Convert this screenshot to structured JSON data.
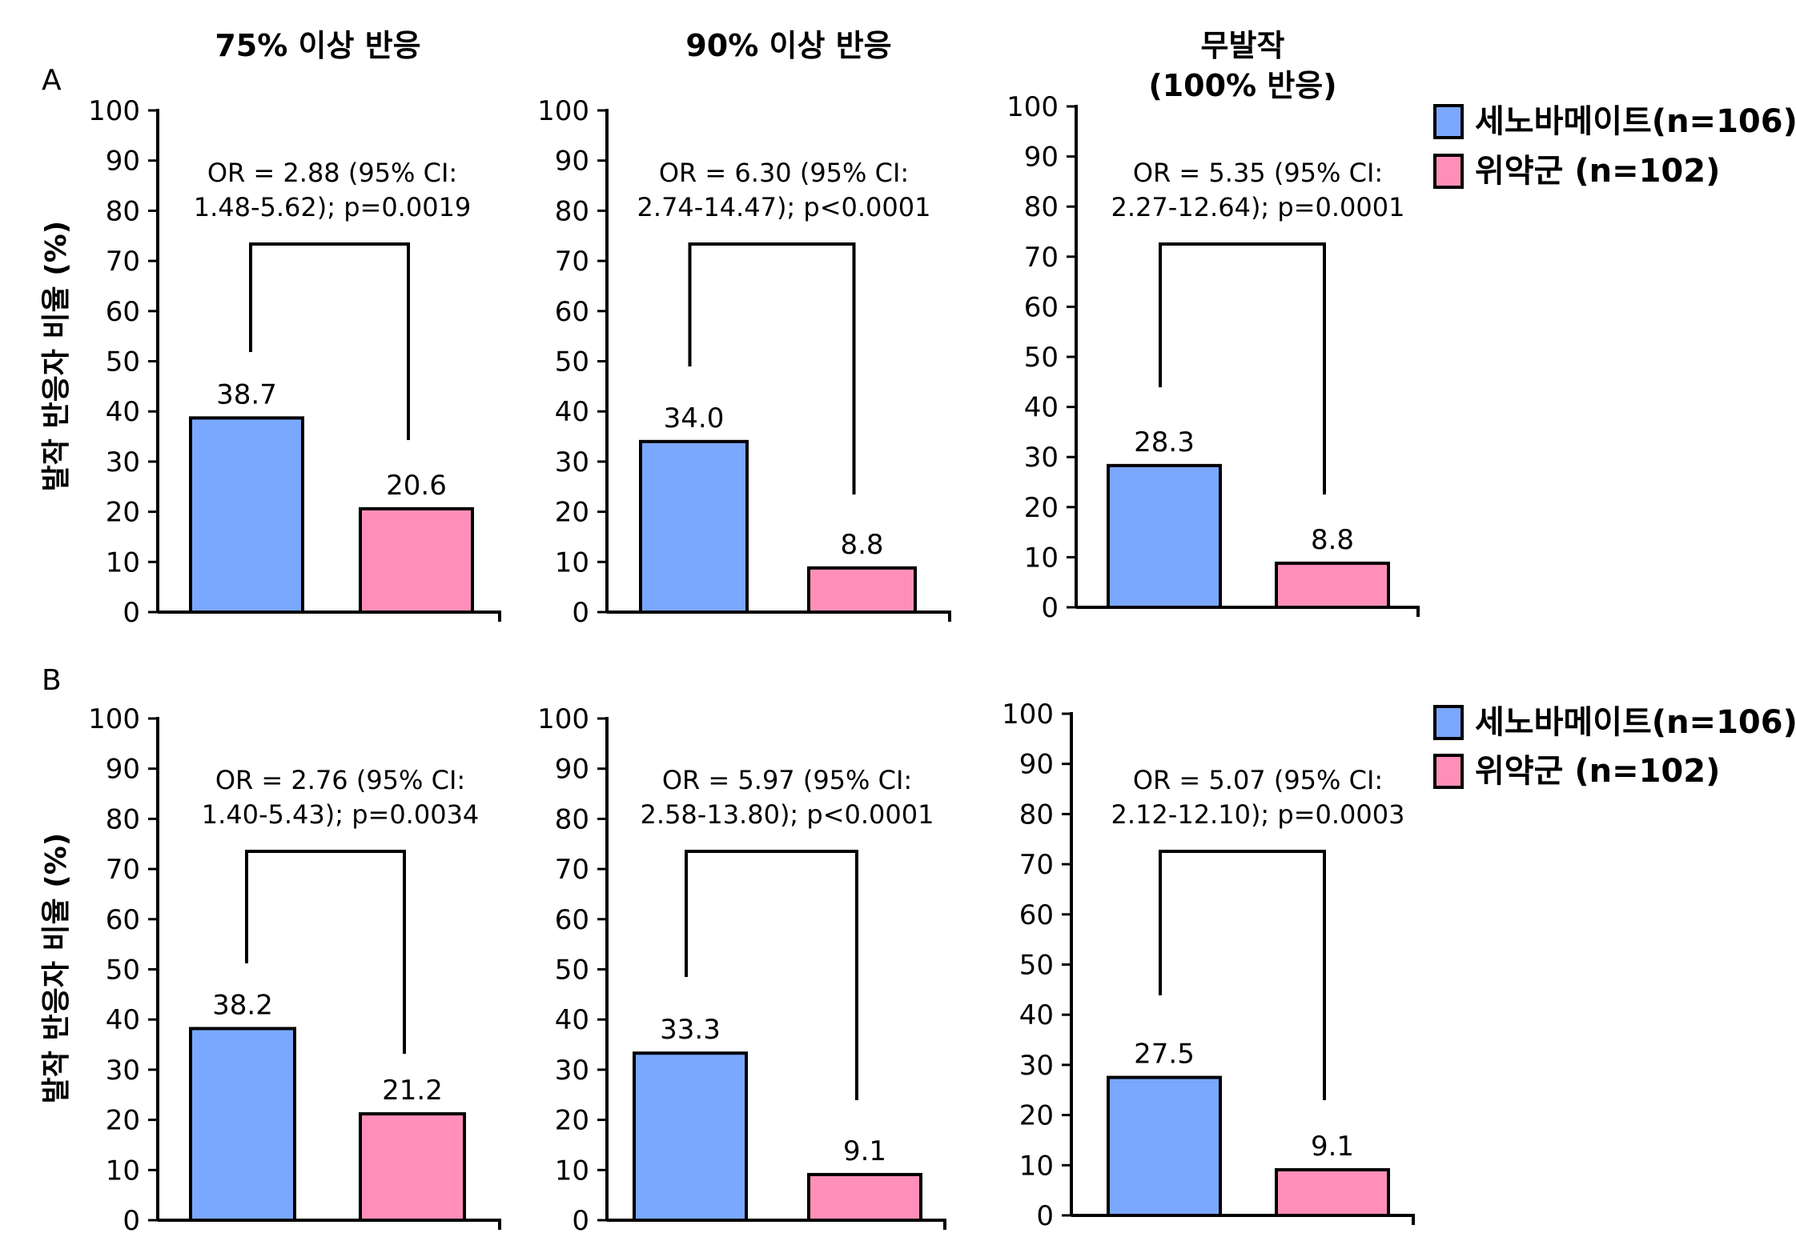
{
  "panel_labels": [
    "A",
    "B"
  ],
  "column_titles": [
    [
      "75% 이상 반응"
    ],
    [
      "90% 이상 반응"
    ],
    [
      "무발작",
      "(100% 반응)"
    ]
  ],
  "ylabel": "발작 반응자 비율 (%)",
  "legend": {
    "items": [
      {
        "label": "세노바메이트(n=106)",
        "color": "#7aa8ff"
      },
      {
        "label": "위약군 (n=102)",
        "color": "#ff8fb9"
      }
    ]
  },
  "colors": {
    "drug": "#7aa8ff",
    "placebo": "#ff8fb9"
  },
  "chart_data": [
    {
      "type": "bar",
      "panel": "A",
      "title": "75% 이상 반응",
      "ylabel": "발작 반응자 비율 (%)",
      "ylim": [
        0,
        100
      ],
      "yticks": [
        0,
        10,
        20,
        30,
        40,
        50,
        60,
        70,
        80,
        90,
        100
      ],
      "series": [
        {
          "name": "세노바메이트(n=106)",
          "value": 38.7,
          "label": "38.7"
        },
        {
          "name": "위약군 (n=102)",
          "value": 20.6,
          "label": "20.6"
        }
      ],
      "annotation": [
        "OR = 2.88 (95% CI:",
        "1.48-5.62); p=0.0019"
      ]
    },
    {
      "type": "bar",
      "panel": "A",
      "title": "90% 이상 반응",
      "ylim": [
        0,
        100
      ],
      "yticks": [
        0,
        10,
        20,
        30,
        40,
        50,
        60,
        70,
        80,
        90,
        100
      ],
      "series": [
        {
          "name": "세노바메이트(n=106)",
          "value": 34.0,
          "label": "34.0"
        },
        {
          "name": "위약군 (n=102)",
          "value": 8.8,
          "label": "8.8"
        }
      ],
      "annotation": [
        "OR = 6.30 (95% CI:",
        "2.74-14.47); p<0.0001"
      ]
    },
    {
      "type": "bar",
      "panel": "A",
      "title": "무발작 (100% 반응)",
      "ylim": [
        0,
        100
      ],
      "yticks": [
        0,
        10,
        20,
        30,
        40,
        50,
        60,
        70,
        80,
        90,
        100
      ],
      "series": [
        {
          "name": "세노바메이트(n=106)",
          "value": 28.3,
          "label": "28.3"
        },
        {
          "name": "위약군 (n=102)",
          "value": 8.8,
          "label": "8.8"
        }
      ],
      "annotation": [
        "OR = 5.35 (95% CI:",
        "2.27-12.64); p=0.0001"
      ]
    },
    {
      "type": "bar",
      "panel": "B",
      "ylabel": "발작 반응자 비율 (%)",
      "ylim": [
        0,
        100
      ],
      "yticks": [
        0,
        10,
        20,
        30,
        40,
        50,
        60,
        70,
        80,
        90,
        100
      ],
      "series": [
        {
          "name": "세노바메이트(n=106)",
          "value": 38.2,
          "label": "38.2"
        },
        {
          "name": "위약군 (n=102)",
          "value": 21.2,
          "label": "21.2"
        }
      ],
      "annotation": [
        "OR = 2.76 (95% CI:",
        "1.40-5.43); p=0.0034"
      ]
    },
    {
      "type": "bar",
      "panel": "B",
      "ylim": [
        0,
        100
      ],
      "yticks": [
        0,
        10,
        20,
        30,
        40,
        50,
        60,
        70,
        80,
        90,
        100
      ],
      "series": [
        {
          "name": "세노바메이트(n=106)",
          "value": 33.3,
          "label": "33.3"
        },
        {
          "name": "위약군 (n=102)",
          "value": 9.1,
          "label": "9.1"
        }
      ],
      "annotation": [
        "OR = 5.97 (95% CI:",
        "2.58-13.80); p<0.0001"
      ]
    },
    {
      "type": "bar",
      "panel": "B",
      "ylim": [
        0,
        100
      ],
      "yticks": [
        0,
        10,
        20,
        30,
        40,
        50,
        60,
        70,
        80,
        90,
        100
      ],
      "series": [
        {
          "name": "세노바메이트(n=106)",
          "value": 27.5,
          "label": "27.5"
        },
        {
          "name": "위약군 (n=102)",
          "value": 9.1,
          "label": "9.1"
        }
      ],
      "annotation": [
        "OR = 5.07 (95% CI:",
        "2.12-12.10); p=0.0003"
      ]
    }
  ]
}
